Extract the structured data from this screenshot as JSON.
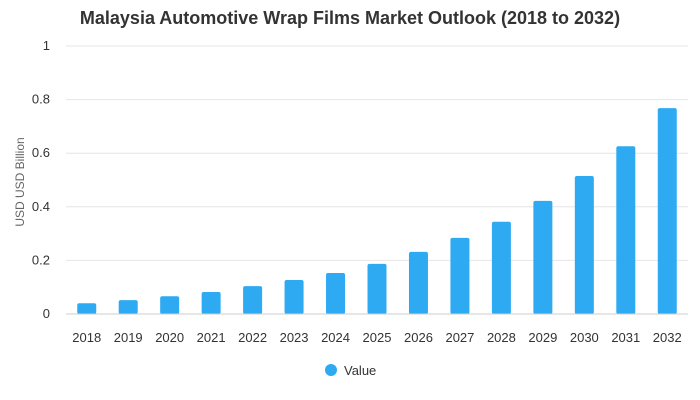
{
  "chart_data": {
    "type": "bar",
    "title": "Malaysia Automotive Wrap Films Market Outlook (2018 to 2032)",
    "ylabel": "USD USD Billion",
    "xlabel": "",
    "ylim": [
      0,
      1
    ],
    "yticks": [
      "0",
      "0.2",
      "0.4",
      "0.6",
      "0.8",
      "1"
    ],
    "categories": [
      "2018",
      "2019",
      "2020",
      "2021",
      "2022",
      "2023",
      "2024",
      "2025",
      "2026",
      "2027",
      "2028",
      "2029",
      "2030",
      "2031",
      "2032"
    ],
    "series": [
      {
        "name": "Value",
        "color": "#2eaaf3",
        "values": [
          0.04,
          0.052,
          0.066,
          0.082,
          0.104,
          0.127,
          0.153,
          0.187,
          0.232,
          0.284,
          0.344,
          0.422,
          0.515,
          0.626,
          0.768
        ]
      }
    ],
    "grid": true,
    "legend_position": "bottom"
  }
}
